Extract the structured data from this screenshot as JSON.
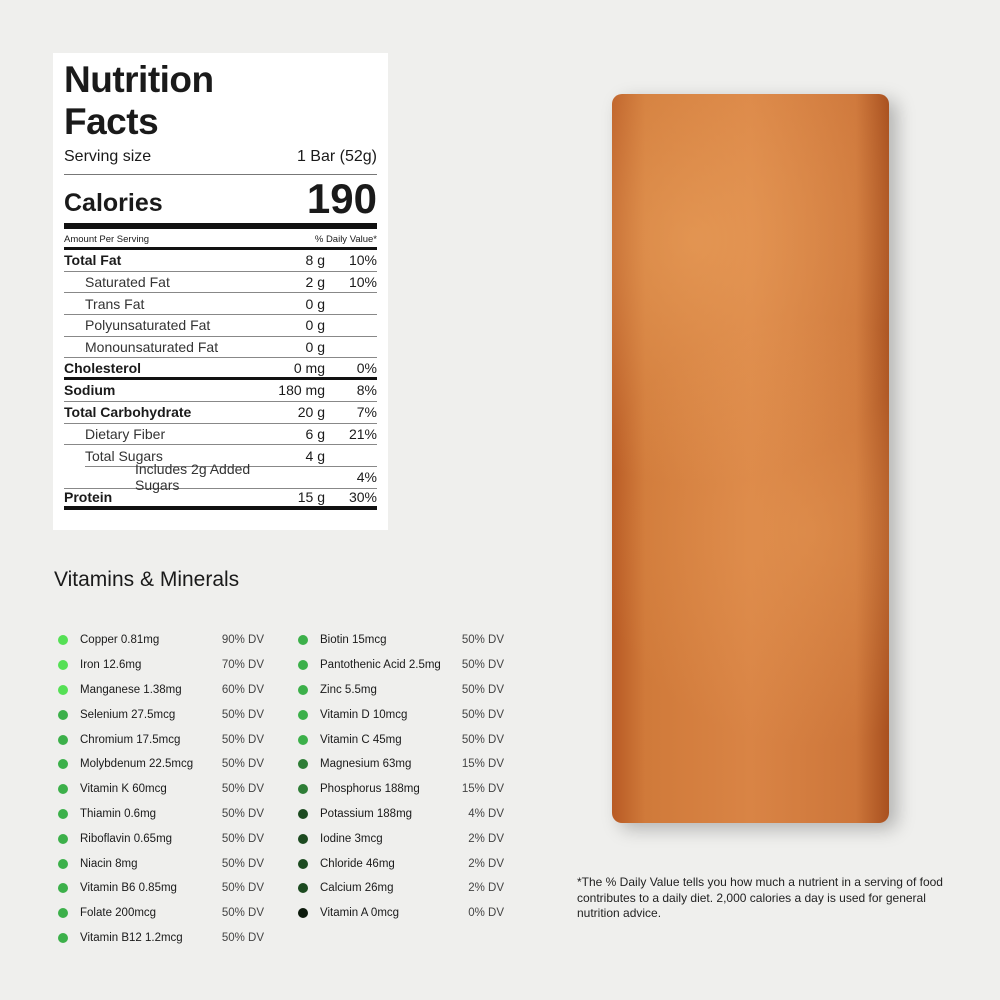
{
  "label": {
    "title_line1": "Nutrition",
    "title_line2": "Facts",
    "serving_label": "Serving size",
    "serving_value": "1 Bar (52g)",
    "calories_label": "Calories",
    "calories_value": "190",
    "amount_per_serving": "Amount Per Serving",
    "daily_value_header": "% Daily Value*",
    "rows": [
      {
        "name": "Total Fat",
        "amount": "8 g",
        "dv": "10%"
      },
      {
        "name": "Saturated Fat",
        "amount": "2 g",
        "dv": "10%"
      },
      {
        "name": "Trans Fat",
        "amount": "0 g",
        "dv": ""
      },
      {
        "name": "Polyunsaturated Fat",
        "amount": "0 g",
        "dv": ""
      },
      {
        "name": "Monounsaturated Fat",
        "amount": "0 g",
        "dv": ""
      },
      {
        "name": "Cholesterol",
        "amount": "0 mg",
        "dv": "0%"
      },
      {
        "name": "Sodium",
        "amount": "180 mg",
        "dv": "8%"
      },
      {
        "name": "Total Carbohydrate",
        "amount": "20 g",
        "dv": "7%"
      },
      {
        "name": "Dietary Fiber",
        "amount": "6 g",
        "dv": "21%"
      },
      {
        "name": "Total Sugars",
        "amount": "4 g",
        "dv": ""
      },
      {
        "name": "Includes 2g Added Sugars",
        "amount": "",
        "dv": "4%"
      },
      {
        "name": "Protein",
        "amount": "15 g",
        "dv": "30%"
      }
    ]
  },
  "vitamins": {
    "title": "Vitamins & Minerals",
    "colors": {
      "high": "#55e055",
      "mid": "#3cb04a",
      "low": "#2e7d36",
      "vlow": "#1c4a20",
      "zero": "#0c1a0c"
    },
    "left": [
      {
        "name": "Copper 0.81mg",
        "dv": "90% DV",
        "level": "high"
      },
      {
        "name": "Iron 12.6mg",
        "dv": "70% DV",
        "level": "high"
      },
      {
        "name": "Manganese 1.38mg",
        "dv": "60% DV",
        "level": "high"
      },
      {
        "name": "Selenium 27.5mcg",
        "dv": "50% DV",
        "level": "mid"
      },
      {
        "name": "Chromium 17.5mcg",
        "dv": "50% DV",
        "level": "mid"
      },
      {
        "name": "Molybdenum 22.5mcg",
        "dv": "50% DV",
        "level": "mid"
      },
      {
        "name": "Vitamin K 60mcg",
        "dv": "50% DV",
        "level": "mid"
      },
      {
        "name": "Thiamin 0.6mg",
        "dv": "50% DV",
        "level": "mid"
      },
      {
        "name": "Riboflavin 0.65mg",
        "dv": "50% DV",
        "level": "mid"
      },
      {
        "name": "Niacin 8mg",
        "dv": "50% DV",
        "level": "mid"
      },
      {
        "name": "Vitamin B6 0.85mg",
        "dv": "50% DV",
        "level": "mid"
      },
      {
        "name": "Folate 200mcg",
        "dv": "50% DV",
        "level": "mid"
      },
      {
        "name": "Vitamin B12 1.2mcg",
        "dv": "50% DV",
        "level": "mid"
      }
    ],
    "right": [
      {
        "name": "Biotin 15mcg",
        "dv": "50% DV",
        "level": "mid"
      },
      {
        "name": "Pantothenic Acid 2.5mg",
        "dv": "50% DV",
        "level": "mid"
      },
      {
        "name": "Zinc 5.5mg",
        "dv": "50% DV",
        "level": "mid"
      },
      {
        "name": "Vitamin D 10mcg",
        "dv": "50% DV",
        "level": "mid"
      },
      {
        "name": "Vitamin C 45mg",
        "dv": "50% DV",
        "level": "mid"
      },
      {
        "name": "Magnesium 63mg",
        "dv": "15% DV",
        "level": "low"
      },
      {
        "name": "Phosphorus 188mg",
        "dv": "15% DV",
        "level": "low"
      },
      {
        "name": "Potassium 188mg",
        "dv": "4% DV",
        "level": "vlow"
      },
      {
        "name": "Iodine 3mcg",
        "dv": "2% DV",
        "level": "vlow"
      },
      {
        "name": "Chloride 46mg",
        "dv": "2% DV",
        "level": "vlow"
      },
      {
        "name": "Calcium 26mg",
        "dv": "2% DV",
        "level": "vlow"
      },
      {
        "name": "Vitamin A 0mcg",
        "dv": "0% DV",
        "level": "zero"
      }
    ]
  },
  "footnote": "*The % Daily Value tells you how much a nutrient in a serving of food contributes to a daily diet. 2,000 calories a day is used for general nutrition advice."
}
